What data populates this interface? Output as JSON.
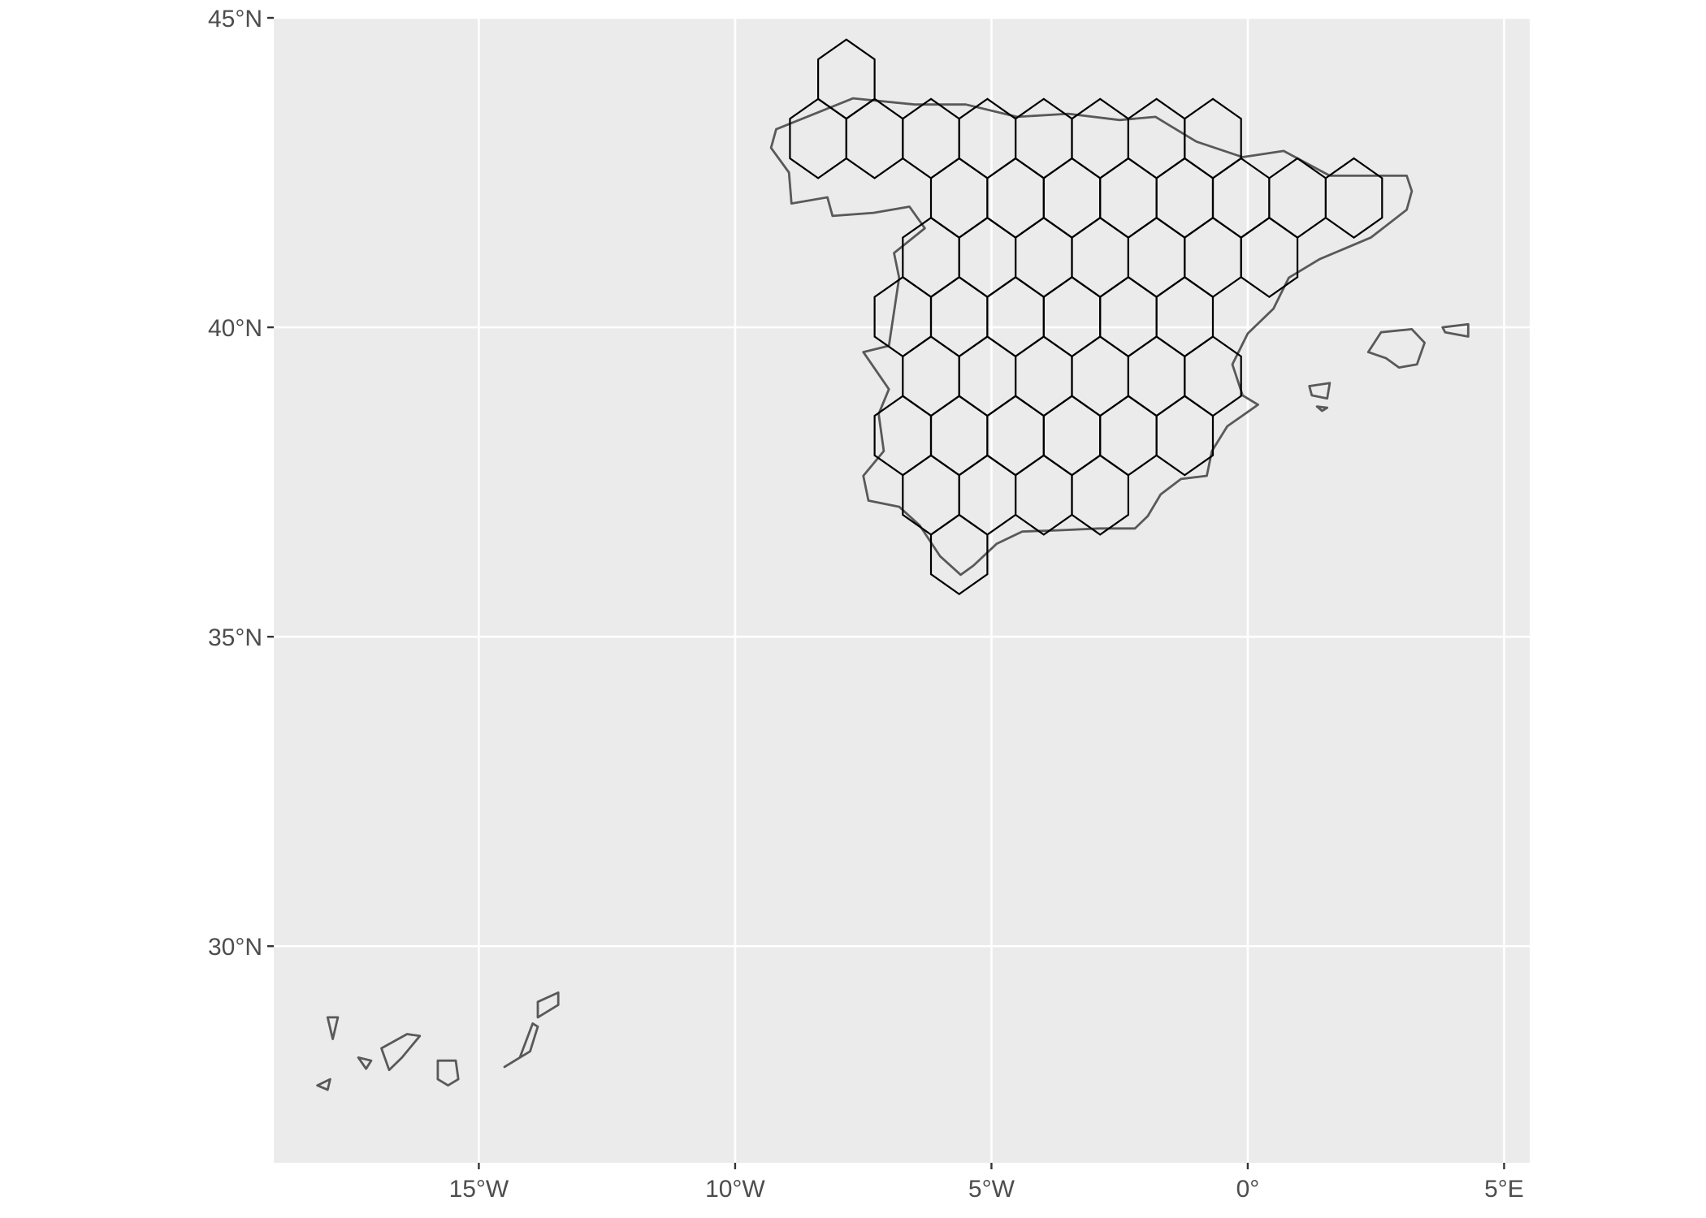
{
  "map": {
    "type": "map",
    "projection": "geographic (lon/lat)",
    "xlim": [
      -19.0,
      5.5
    ],
    "ylim": [
      26.5,
      45.0
    ],
    "panel_background": "#ebebeb",
    "grid_color": "#ffffff",
    "grid": true,
    "x_ticks": [
      {
        "value": -15,
        "label": "15°W"
      },
      {
        "value": -10,
        "label": "10°W"
      },
      {
        "value": -5,
        "label": "5°W"
      },
      {
        "value": 0,
        "label": "0°"
      },
      {
        "value": 5,
        "label": "5°E"
      }
    ],
    "y_ticks": [
      {
        "value": 30,
        "label": "30°N"
      },
      {
        "value": 35,
        "label": "35°N"
      },
      {
        "value": 40,
        "label": "40°N"
      },
      {
        "value": 45,
        "label": "45°N"
      }
    ],
    "hex_grid": {
      "description": "hexagonal grid cells (outline only) covering mainland Spain",
      "stroke_color": "#000000",
      "column_spacing_deg": 1.1,
      "row_spacing_deg": 0.96,
      "cell_radius_deg": 0.64,
      "row_center_latitudes": [
        43.05,
        42.09,
        41.13,
        40.17,
        39.21,
        38.25,
        37.29,
        36.33
      ],
      "cells": [
        {
          "lon": -7.83,
          "lat": 44.01
        },
        {
          "lon": -8.38,
          "lat": 43.05
        },
        {
          "lon": -7.28,
          "lat": 43.05
        },
        {
          "lon": -6.18,
          "lat": 43.05
        },
        {
          "lon": -5.08,
          "lat": 43.05
        },
        {
          "lon": -3.98,
          "lat": 43.05
        },
        {
          "lon": -2.88,
          "lat": 43.05
        },
        {
          "lon": -1.78,
          "lat": 43.05
        },
        {
          "lon": -0.68,
          "lat": 43.05
        },
        {
          "lon": -5.63,
          "lat": 42.09
        },
        {
          "lon": -4.53,
          "lat": 42.09
        },
        {
          "lon": -3.43,
          "lat": 42.09
        },
        {
          "lon": -2.33,
          "lat": 42.09
        },
        {
          "lon": -1.23,
          "lat": 42.09
        },
        {
          "lon": -0.13,
          "lat": 42.09
        },
        {
          "lon": 0.97,
          "lat": 42.09
        },
        {
          "lon": 2.07,
          "lat": 42.09
        },
        {
          "lon": -6.18,
          "lat": 41.13
        },
        {
          "lon": -5.08,
          "lat": 41.13
        },
        {
          "lon": -3.98,
          "lat": 41.13
        },
        {
          "lon": -2.88,
          "lat": 41.13
        },
        {
          "lon": -1.78,
          "lat": 41.13
        },
        {
          "lon": -0.68,
          "lat": 41.13
        },
        {
          "lon": 0.42,
          "lat": 41.13
        },
        {
          "lon": -6.73,
          "lat": 40.17
        },
        {
          "lon": -5.63,
          "lat": 40.17
        },
        {
          "lon": -4.53,
          "lat": 40.17
        },
        {
          "lon": -3.43,
          "lat": 40.17
        },
        {
          "lon": -2.33,
          "lat": 40.17
        },
        {
          "lon": -1.23,
          "lat": 40.17
        },
        {
          "lon": -6.18,
          "lat": 39.21
        },
        {
          "lon": -5.08,
          "lat": 39.21
        },
        {
          "lon": -3.98,
          "lat": 39.21
        },
        {
          "lon": -2.88,
          "lat": 39.21
        },
        {
          "lon": -1.78,
          "lat": 39.21
        },
        {
          "lon": -0.68,
          "lat": 39.21
        },
        {
          "lon": -6.73,
          "lat": 38.25
        },
        {
          "lon": -5.63,
          "lat": 38.25
        },
        {
          "lon": -4.53,
          "lat": 38.25
        },
        {
          "lon": -3.43,
          "lat": 38.25
        },
        {
          "lon": -2.33,
          "lat": 38.25
        },
        {
          "lon": -1.23,
          "lat": 38.25
        },
        {
          "lon": -6.18,
          "lat": 37.29
        },
        {
          "lon": -5.08,
          "lat": 37.29
        },
        {
          "lon": -3.98,
          "lat": 37.29
        },
        {
          "lon": -2.88,
          "lat": 37.29
        },
        {
          "lon": -5.63,
          "lat": 36.33
        }
      ]
    },
    "coastlines": {
      "stroke_color": "#595959",
      "regions": [
        {
          "name": "mainland",
          "coords": [
            [
              -8.9,
              43.3
            ],
            [
              -8.3,
              43.5
            ],
            [
              -7.7,
              43.7
            ],
            [
              -6.5,
              43.6
            ],
            [
              -5.5,
              43.6
            ],
            [
              -4.5,
              43.4
            ],
            [
              -3.5,
              43.45
            ],
            [
              -2.5,
              43.35
            ],
            [
              -1.8,
              43.4
            ],
            [
              -1.5,
              43.25
            ],
            [
              -1.0,
              43.0
            ],
            [
              -0.1,
              42.75
            ],
            [
              0.7,
              42.85
            ],
            [
              1.6,
              42.45
            ],
            [
              3.1,
              42.45
            ],
            [
              3.2,
              42.2
            ],
            [
              3.1,
              41.9
            ],
            [
              2.4,
              41.45
            ],
            [
              1.4,
              41.1
            ],
            [
              0.8,
              40.8
            ],
            [
              0.5,
              40.3
            ],
            [
              0.0,
              39.9
            ],
            [
              -0.3,
              39.4
            ],
            [
              -0.1,
              38.9
            ],
            [
              0.2,
              38.75
            ],
            [
              -0.4,
              38.4
            ],
            [
              -0.7,
              38.0
            ],
            [
              -0.8,
              37.6
            ],
            [
              -1.3,
              37.55
            ],
            [
              -1.7,
              37.3
            ],
            [
              -1.95,
              36.95
            ],
            [
              -2.2,
              36.75
            ],
            [
              -2.9,
              36.75
            ],
            [
              -3.7,
              36.72
            ],
            [
              -4.4,
              36.7
            ],
            [
              -4.9,
              36.5
            ],
            [
              -5.35,
              36.15
            ],
            [
              -5.6,
              36.0
            ],
            [
              -6.0,
              36.3
            ],
            [
              -6.4,
              36.8
            ],
            [
              -6.8,
              37.1
            ],
            [
              -7.4,
              37.2
            ],
            [
              -7.5,
              37.6
            ],
            [
              -7.1,
              38.0
            ],
            [
              -7.2,
              38.6
            ],
            [
              -7.0,
              39.0
            ],
            [
              -7.5,
              39.6
            ],
            [
              -7.0,
              39.7
            ],
            [
              -6.9,
              40.25
            ],
            [
              -6.8,
              40.8
            ],
            [
              -6.9,
              41.2
            ],
            [
              -6.3,
              41.6
            ],
            [
              -6.6,
              41.95
            ],
            [
              -7.3,
              41.85
            ],
            [
              -8.1,
              41.8
            ],
            [
              -8.2,
              42.1
            ],
            [
              -8.9,
              42.0
            ],
            [
              -8.95,
              42.5
            ],
            [
              -9.3,
              42.9
            ],
            [
              -9.2,
              43.2
            ],
            [
              -8.9,
              43.3
            ]
          ]
        },
        {
          "name": "mallorca",
          "coords": [
            [
              2.35,
              39.6
            ],
            [
              2.6,
              39.92
            ],
            [
              3.2,
              39.97
            ],
            [
              3.45,
              39.75
            ],
            [
              3.3,
              39.4
            ],
            [
              2.95,
              39.35
            ],
            [
              2.7,
              39.5
            ],
            [
              2.35,
              39.6
            ]
          ]
        },
        {
          "name": "menorca",
          "coords": [
            [
              3.8,
              40.0
            ],
            [
              4.3,
              40.05
            ],
            [
              4.3,
              39.85
            ],
            [
              3.85,
              39.92
            ],
            [
              3.8,
              40.0
            ]
          ]
        },
        {
          "name": "ibiza",
          "coords": [
            [
              1.2,
              39.05
            ],
            [
              1.6,
              39.1
            ],
            [
              1.55,
              38.85
            ],
            [
              1.25,
              38.9
            ],
            [
              1.2,
              39.05
            ]
          ]
        },
        {
          "name": "formentera",
          "coords": [
            [
              1.35,
              38.72
            ],
            [
              1.55,
              38.7
            ],
            [
              1.45,
              38.65
            ],
            [
              1.35,
              38.72
            ]
          ]
        },
        {
          "name": "tenerife",
          "coords": [
            [
              -16.9,
              28.35
            ],
            [
              -16.4,
              28.58
            ],
            [
              -16.15,
              28.55
            ],
            [
              -16.5,
              28.2
            ],
            [
              -16.75,
              28.0
            ],
            [
              -16.9,
              28.35
            ]
          ]
        },
        {
          "name": "gran-canaria",
          "coords": [
            [
              -15.8,
              28.15
            ],
            [
              -15.45,
              28.15
            ],
            [
              -15.4,
              27.85
            ],
            [
              -15.6,
              27.75
            ],
            [
              -15.8,
              27.85
            ],
            [
              -15.8,
              28.15
            ]
          ]
        },
        {
          "name": "fuerteventura",
          "coords": [
            [
              -14.5,
              28.05
            ],
            [
              -14.0,
              28.3
            ],
            [
              -13.85,
              28.7
            ],
            [
              -13.95,
              28.75
            ],
            [
              -14.2,
              28.2
            ],
            [
              -14.5,
              28.05
            ]
          ]
        },
        {
          "name": "lanzarote",
          "coords": [
            [
              -13.85,
              28.85
            ],
            [
              -13.45,
              29.05
            ],
            [
              -13.45,
              29.25
            ],
            [
              -13.85,
              29.1
            ],
            [
              -13.85,
              28.85
            ]
          ]
        },
        {
          "name": "la-palma",
          "coords": [
            [
              -17.95,
              28.85
            ],
            [
              -17.75,
              28.85
            ],
            [
              -17.85,
              28.5
            ],
            [
              -17.95,
              28.85
            ]
          ]
        },
        {
          "name": "la-gomera",
          "coords": [
            [
              -17.35,
              28.2
            ],
            [
              -17.1,
              28.15
            ],
            [
              -17.2,
              28.02
            ],
            [
              -17.35,
              28.2
            ]
          ]
        },
        {
          "name": "el-hierro",
          "coords": [
            [
              -18.15,
              27.75
            ],
            [
              -17.9,
              27.85
            ],
            [
              -17.95,
              27.68
            ],
            [
              -18.15,
              27.75
            ]
          ]
        }
      ]
    }
  }
}
